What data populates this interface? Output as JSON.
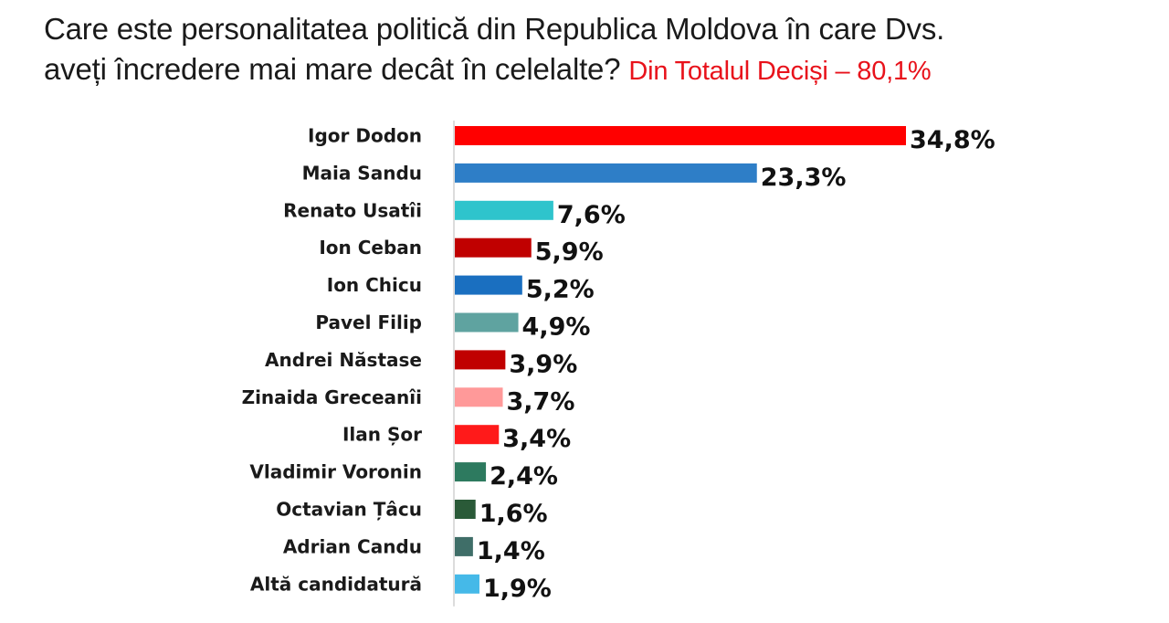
{
  "title": {
    "line1": "Care este personalitatea politică din Republica Moldova în care Dvs.",
    "line2": "aveți încredere mai mare decât în celelalte?",
    "highlight": "Din Totalul Deciși – 80,1%"
  },
  "chart_data": {
    "type": "bar",
    "orientation": "horizontal",
    "title": "Care este personalitatea politică din Republica Moldova în care Dvs. aveți încredere mai mare decât în celelalte? Din Totalul Deciși – 80,1%",
    "categories": [
      "Igor Dodon",
      "Maia Sandu",
      "Renato Usatîi",
      "Ion Ceban",
      "Ion Chicu",
      "Pavel Filip",
      "Andrei Năstase",
      "Zinaida Greceanîi",
      "Ilan Șor",
      "Vladimir Voronin",
      "Octavian Țâcu",
      "Adrian Candu",
      "Altă candidatură"
    ],
    "values": [
      34.8,
      23.3,
      7.6,
      5.9,
      5.2,
      4.9,
      3.9,
      3.7,
      3.4,
      2.4,
      1.6,
      1.4,
      1.9
    ],
    "value_labels": [
      "34,8%",
      "23,3%",
      "7,6%",
      "5,9%",
      "5,2%",
      "4,9%",
      "3,9%",
      "3,7%",
      "3,4%",
      "2,4%",
      "1,6%",
      "1,4%",
      "1,9%"
    ],
    "colors": [
      "#ff0000",
      "#2e7ec7",
      "#2ec4cc",
      "#c00000",
      "#1a6fc0",
      "#5fa3a0",
      "#c00000",
      "#ff9999",
      "#ff1a1a",
      "#2d7a5f",
      "#2a5a38",
      "#3f6e68",
      "#45b9e8"
    ],
    "xlim": [
      0,
      34.8
    ],
    "grid": false,
    "legend": "none"
  }
}
